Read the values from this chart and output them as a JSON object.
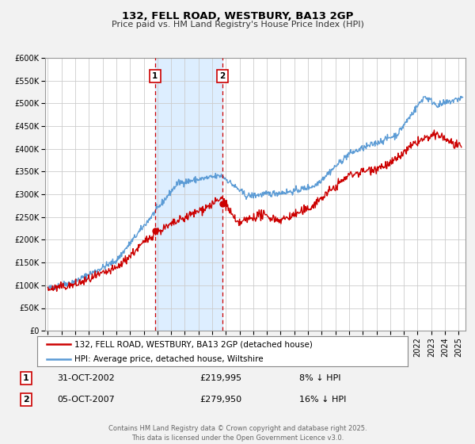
{
  "title": "132, FELL ROAD, WESTBURY, BA13 2GP",
  "subtitle": "Price paid vs. HM Land Registry's House Price Index (HPI)",
  "bg_color": "#f2f2f2",
  "plot_bg_color": "#ffffff",
  "grid_color": "#cccccc",
  "red_line_color": "#cc0000",
  "blue_line_color": "#5b9bd5",
  "shade_color": "#ddeeff",
  "marker1_date_num": 2002.83,
  "marker1_value": 219995,
  "marker2_date_num": 2007.76,
  "marker2_value": 279950,
  "legend_line1": "132, FELL ROAD, WESTBURY, BA13 2GP (detached house)",
  "legend_line2": "HPI: Average price, detached house, Wiltshire",
  "footer": "Contains HM Land Registry data © Crown copyright and database right 2025.\nThis data is licensed under the Open Government Licence v3.0.",
  "ylim": [
    0,
    600000
  ],
  "yticks": [
    0,
    50000,
    100000,
    150000,
    200000,
    250000,
    300000,
    350000,
    400000,
    450000,
    500000,
    550000,
    600000
  ],
  "ytick_labels": [
    "£0",
    "£50K",
    "£100K",
    "£150K",
    "£200K",
    "£250K",
    "£300K",
    "£350K",
    "£400K",
    "£450K",
    "£500K",
    "£550K",
    "£600K"
  ],
  "xlim_start": 1994.8,
  "xlim_end": 2025.5,
  "xticks": [
    1995,
    1996,
    1997,
    1998,
    1999,
    2000,
    2001,
    2002,
    2003,
    2004,
    2005,
    2006,
    2007,
    2008,
    2009,
    2010,
    2011,
    2012,
    2013,
    2014,
    2015,
    2016,
    2017,
    2018,
    2019,
    2020,
    2021,
    2022,
    2023,
    2024,
    2025
  ],
  "ann1_date": "31-OCT-2002",
  "ann1_price": "£219,995",
  "ann1_hpi": "8% ↓ HPI",
  "ann2_date": "05-OCT-2007",
  "ann2_price": "£279,950",
  "ann2_hpi": "16% ↓ HPI"
}
